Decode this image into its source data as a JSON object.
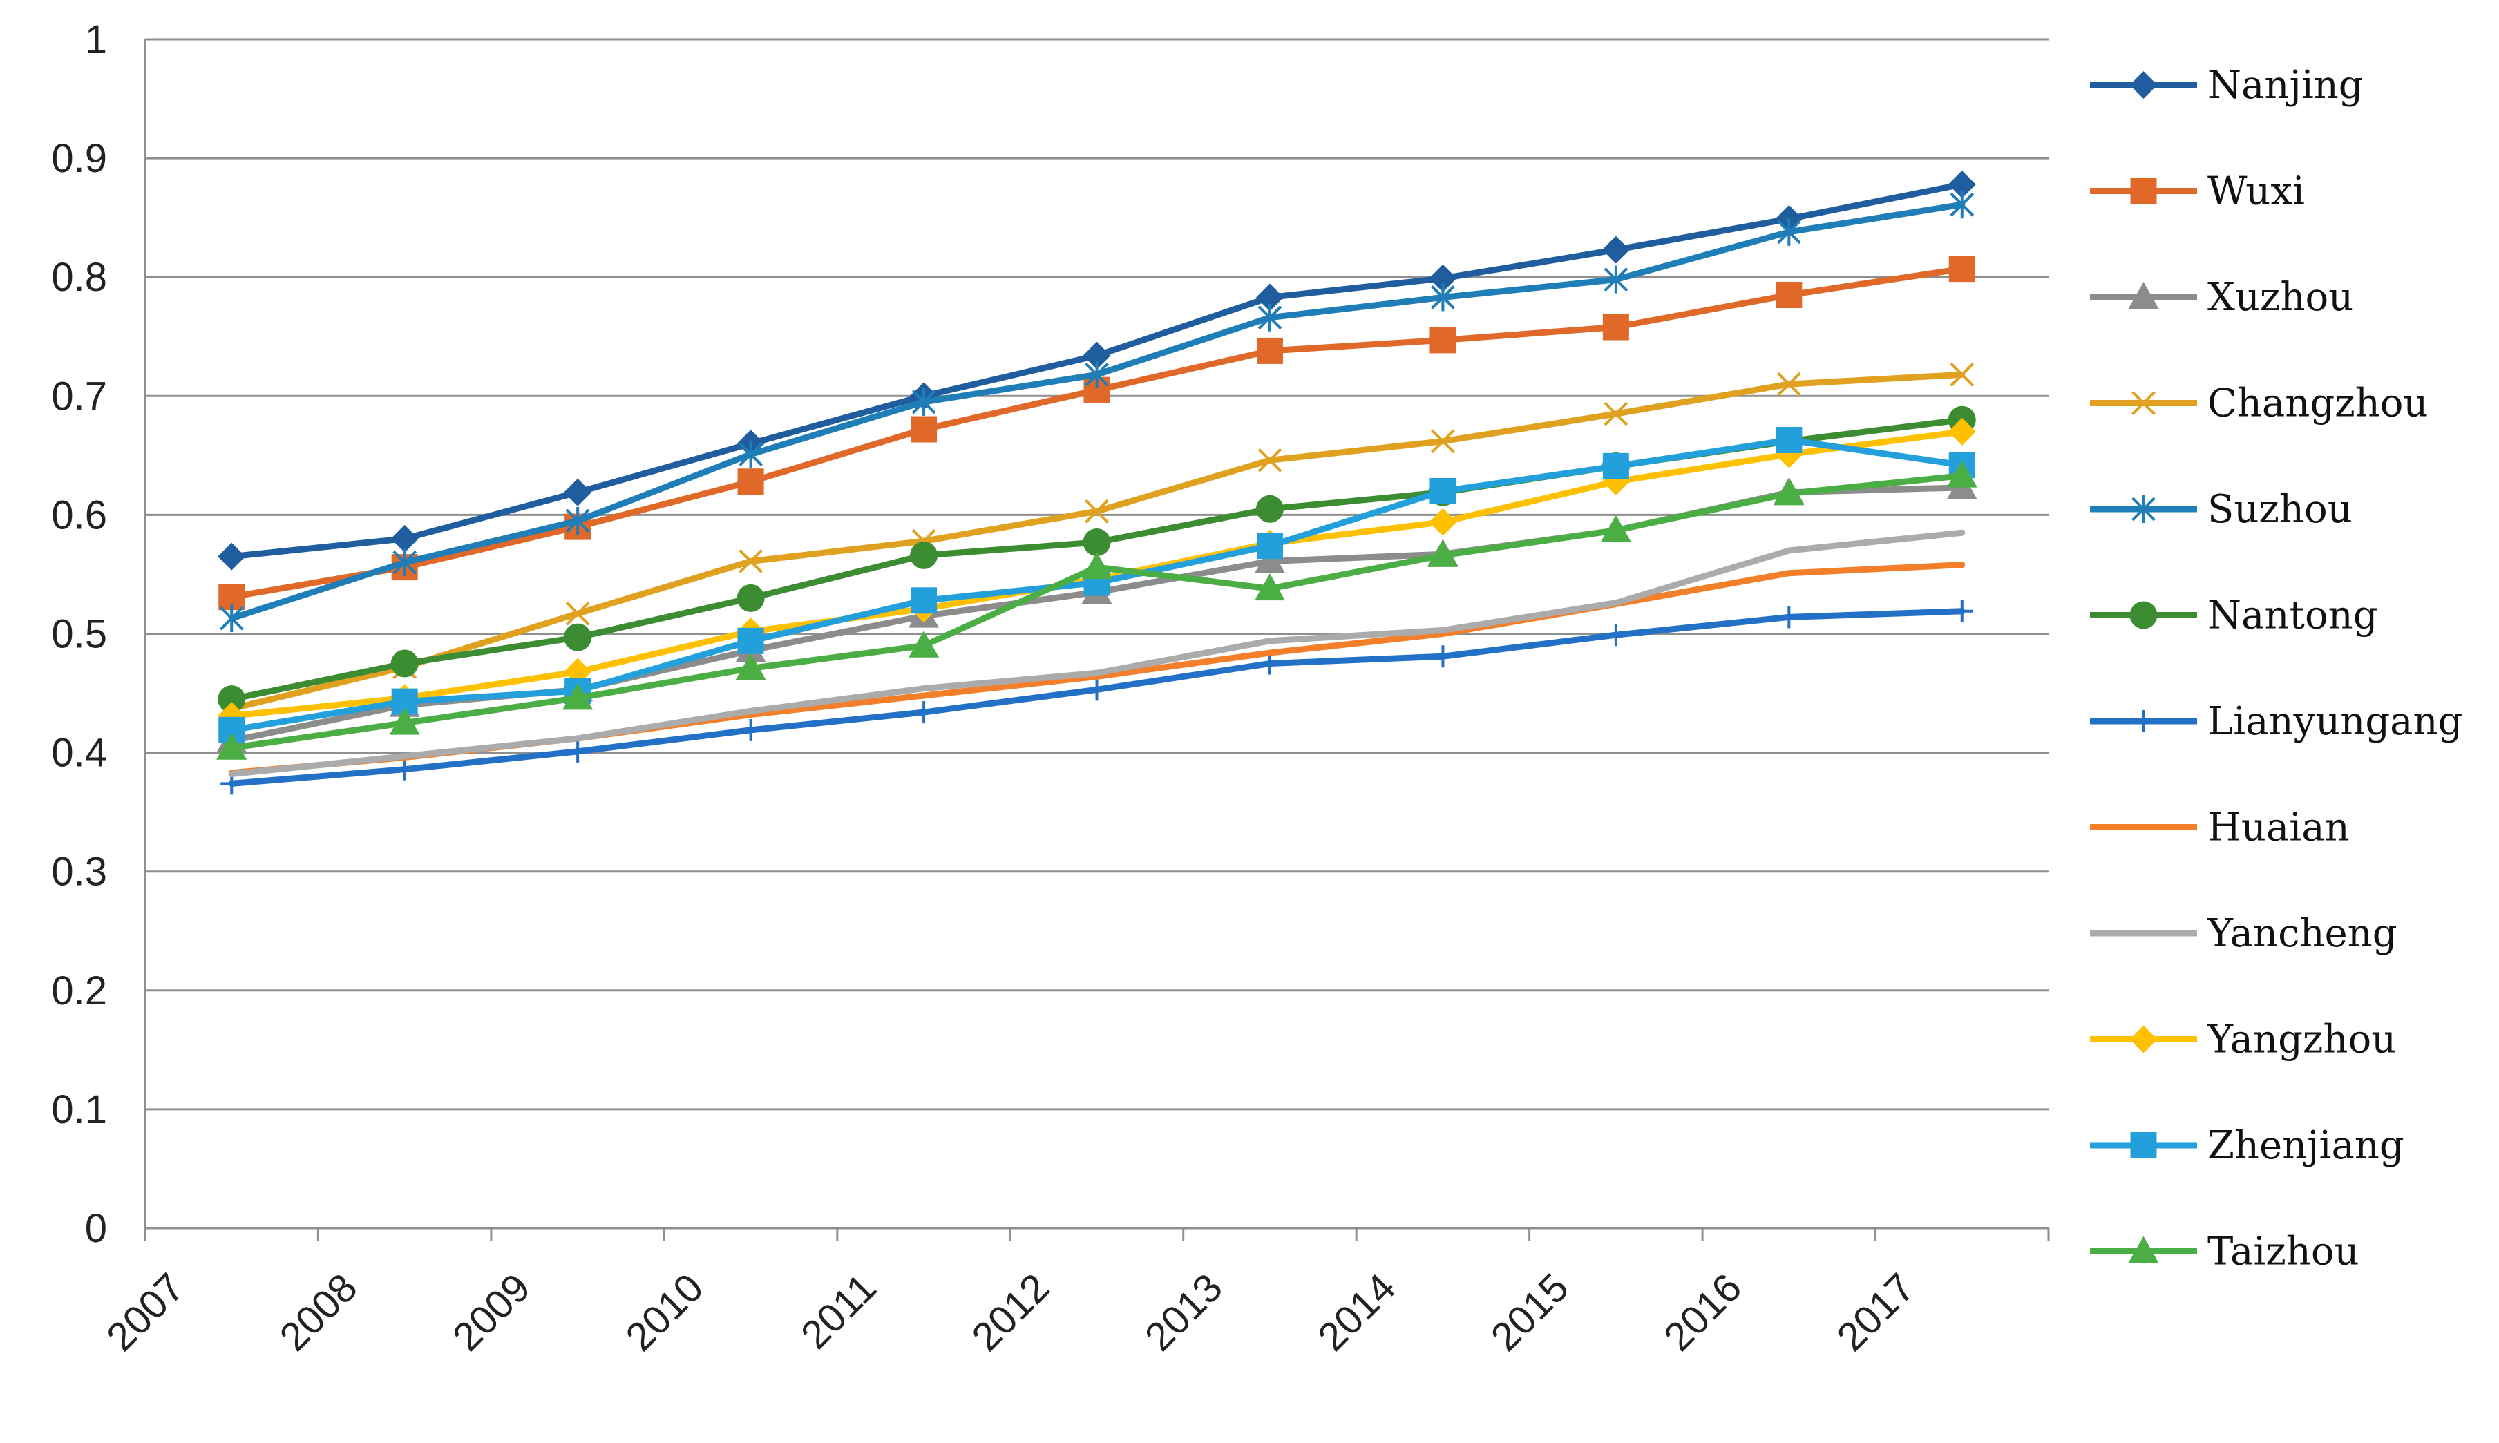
{
  "chart_data": {
    "type": "line",
    "title": "",
    "xlabel": "",
    "ylabel": "",
    "ylim": [
      0,
      1
    ],
    "yticks": [
      "0",
      "0.1",
      "0.2",
      "0.3",
      "0.4",
      "0.5",
      "0.6",
      "0.7",
      "0.8",
      "0.9",
      "1"
    ],
    "categories": [
      "2007",
      "2008",
      "2009",
      "2010",
      "2011",
      "2012",
      "2013",
      "2014",
      "2015",
      "2016",
      "2017"
    ],
    "grid": true,
    "legend_position": "right",
    "series": [
      {
        "name": "Nanjing",
        "color": "#1F5D9E",
        "marker": "diamond",
        "values": [
          0.565,
          0.58,
          0.619,
          0.66,
          0.7,
          0.734,
          0.783,
          0.799,
          0.823,
          0.849,
          0.878
        ]
      },
      {
        "name": "Wuxi",
        "color": "#E0692A",
        "marker": "square",
        "values": [
          0.531,
          0.556,
          0.59,
          0.628,
          0.672,
          0.705,
          0.738,
          0.747,
          0.758,
          0.785,
          0.807
        ]
      },
      {
        "name": "Xuzhou",
        "color": "#8C8C8C",
        "marker": "triangle",
        "values": [
          0.41,
          0.44,
          0.453,
          0.486,
          0.515,
          0.535,
          0.561,
          0.567,
          0.587,
          0.619,
          0.623
        ]
      },
      {
        "name": "Changzhou",
        "color": "#E0A120",
        "marker": "x",
        "values": [
          0.437,
          0.472,
          0.517,
          0.561,
          0.578,
          0.603,
          0.646,
          0.662,
          0.685,
          0.71,
          0.718
        ]
      },
      {
        "name": "Suzhou",
        "color": "#1F7DB8",
        "marker": "star",
        "values": [
          0.513,
          0.56,
          0.595,
          0.651,
          0.695,
          0.718,
          0.766,
          0.783,
          0.798,
          0.838,
          0.861
        ]
      },
      {
        "name": "Nantong",
        "color": "#3C8C32",
        "marker": "circle",
        "values": [
          0.445,
          0.475,
          0.497,
          0.53,
          0.566,
          0.577,
          0.605,
          0.619,
          0.641,
          0.662,
          0.68
        ]
      },
      {
        "name": "Lianyungang",
        "color": "#2370C7",
        "marker": "plus",
        "values": [
          0.374,
          0.386,
          0.401,
          0.419,
          0.434,
          0.453,
          0.475,
          0.481,
          0.499,
          0.514,
          0.519
        ]
      },
      {
        "name": "Huaian",
        "color": "#F47F2A",
        "marker": "none",
        "values": [
          0.383,
          0.396,
          0.412,
          0.432,
          0.448,
          0.464,
          0.484,
          0.5,
          0.525,
          0.551,
          0.558
        ]
      },
      {
        "name": "Yancheng",
        "color": "#ABABAB",
        "marker": "none",
        "values": [
          0.382,
          0.397,
          0.412,
          0.435,
          0.454,
          0.467,
          0.494,
          0.503,
          0.526,
          0.57,
          0.585
        ]
      },
      {
        "name": "Yangzhou",
        "color": "#FFC000",
        "marker": "diamond",
        "values": [
          0.431,
          0.446,
          0.468,
          0.502,
          0.521,
          0.546,
          0.576,
          0.594,
          0.628,
          0.651,
          0.67
        ]
      },
      {
        "name": "Zhenjiang",
        "color": "#23A0DC",
        "marker": "square",
        "values": [
          0.419,
          0.443,
          0.452,
          0.494,
          0.528,
          0.543,
          0.574,
          0.62,
          0.641,
          0.663,
          0.642
        ]
      },
      {
        "name": "Taizhou",
        "color": "#4BAE45",
        "marker": "triangle",
        "values": [
          0.404,
          0.425,
          0.446,
          0.471,
          0.49,
          0.556,
          0.538,
          0.566,
          0.587,
          0.618,
          0.633
        ]
      }
    ]
  }
}
